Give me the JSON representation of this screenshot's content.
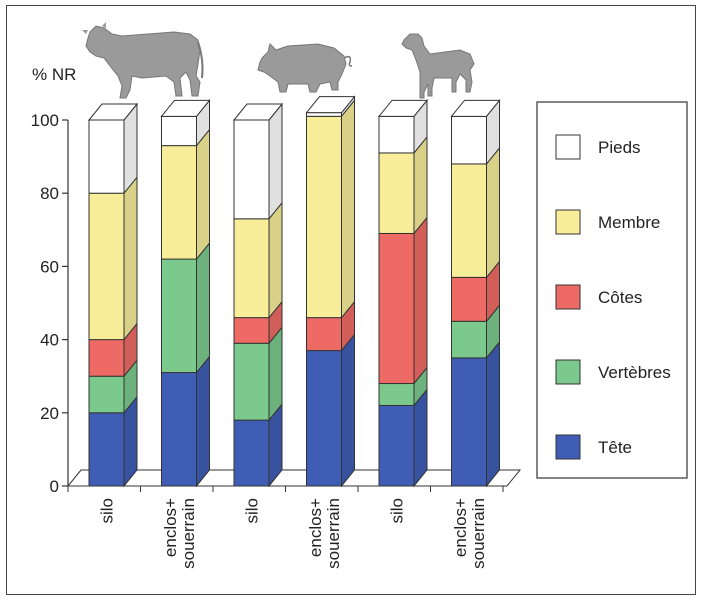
{
  "chart_data": {
    "type": "bar",
    "stacked": true,
    "three_d": true,
    "ylabel": "% NR",
    "xlabel": "",
    "ylim": [
      0,
      100
    ],
    "yticks": [
      0,
      20,
      40,
      60,
      80,
      100
    ],
    "categories": [
      "silo",
      "enclos+\nsouerrain",
      "silo",
      "enclos+\nsouerrain",
      "silo",
      "enclos+\nsouerrain"
    ],
    "groups": [
      {
        "animal": "cattle",
        "icon": "cow-icon"
      },
      {
        "animal": "pig",
        "icon": "pig-icon"
      },
      {
        "animal": "sheep",
        "icon": "sheep-icon"
      }
    ],
    "series": [
      {
        "name": "Tête",
        "color": "#3f5db5",
        "values": [
          20,
          31,
          18,
          37,
          22,
          35
        ]
      },
      {
        "name": "Vertèbres",
        "color": "#7cc98d",
        "values": [
          10,
          31,
          21,
          0,
          6,
          10
        ]
      },
      {
        "name": "Côtes",
        "color": "#ee6b65",
        "values": [
          10,
          0,
          7,
          9,
          41,
          12
        ]
      },
      {
        "name": "Membre",
        "color": "#f8ee9a",
        "values": [
          40,
          31,
          27,
          55,
          22,
          31
        ]
      },
      {
        "name": "Pieds",
        "color": "#ffffff",
        "values": [
          20,
          8,
          27,
          1,
          10,
          13
        ]
      }
    ],
    "legend": {
      "position": "right",
      "order": [
        "Pieds",
        "Membre",
        "Côtes",
        "Vertèbres",
        "Tête"
      ]
    },
    "grid": false
  }
}
